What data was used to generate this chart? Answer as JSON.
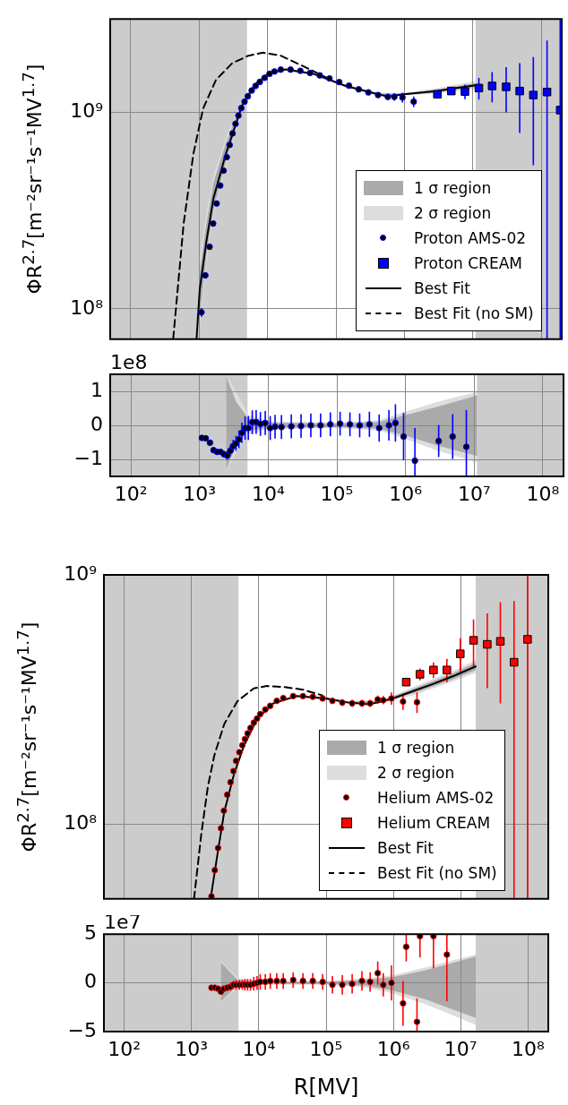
{
  "chart_data": [
    {
      "type": "line",
      "ylabel": "ΦR$^{2.7}$[m⁻²sr⁻¹s⁻¹MV$^{1.7}$]",
      "log": "xy",
      "grid": true,
      "legend": "bottom right",
      "tick_labels": "y",
      "xlim": [
        50,
        200000000
      ],
      "xticks": [
        {
          "value": 100,
          "label": null
        },
        {
          "value": 1000,
          "label": null
        },
        {
          "value": 10000,
          "label": null
        },
        {
          "value": 100000,
          "label": null
        },
        {
          "value": 1000000,
          "label": null
        },
        {
          "value": 10000000,
          "label": null
        },
        {
          "value": 100000000,
          "label": null
        }
      ],
      "ylim": [
        70000000,
        3000000000
      ],
      "yticks": [
        {
          "value": 100000000,
          "label": "10⁸"
        },
        {
          "value": 1000000000,
          "label": "10⁹"
        }
      ],
      "bands": [
        {
          "axis": "x",
          "from": 50,
          "to": 5000,
          "color": "#cccccc"
        },
        {
          "axis": "x",
          "from": 11000000,
          "to": 200000000,
          "color": "#cccccc"
        }
      ],
      "series": [
        {
          "name": "1 σ region",
          "type": "line",
          "color": "#aaaaaa",
          "x": [
            1020,
            1270,
            1620,
            2450,
            4230,
            6530,
            10100,
            18400,
            46600,
            139000,
            413000,
            989000,
            2940000,
            10900000
          ],
          "values": [
            null,
            null,
            null,
            null,
            null,
            null,
            null,
            null,
            null,
            null,
            null,
            null,
            null,
            null
          ],
          "lower": [
            90000000,
            185000000,
            320000000,
            560000000,
            1050000000,
            1380000000,
            1565000000,
            1650000000,
            1565000000,
            1355000000,
            1230000000,
            1230000000,
            1270000000,
            1350000000
          ],
          "upper": [
            155000000,
            270000000,
            440000000,
            700000000,
            1130000000,
            1400000000,
            1590000000,
            1670000000,
            1590000000,
            1380000000,
            1250000000,
            1250000000,
            1310000000,
            1410000000
          ]
        },
        {
          "name": "2 σ region",
          "type": "line",
          "color": "#dddddd",
          "x": [
            1020,
            1270,
            1620,
            2450,
            4230,
            6530,
            10100,
            18400,
            46600,
            139000,
            413000,
            989000,
            2940000,
            10900000
          ],
          "values": [
            null,
            null,
            null,
            null,
            null,
            null,
            null,
            null,
            null,
            null,
            null,
            null,
            null,
            null
          ],
          "lower": [
            80000000,
            170000000,
            300000000,
            530000000,
            1030000000,
            1370000000,
            1555000000,
            1640000000,
            1555000000,
            1345000000,
            1220000000,
            1220000000,
            1250000000,
            1320000000
          ],
          "upper": [
            180000000,
            300000000,
            480000000,
            740000000,
            1150000000,
            1410000000,
            1600000000,
            1680000000,
            1600000000,
            1390000000,
            1260000000,
            1260000000,
            1330000000,
            1450000000
          ]
        },
        {
          "name": "Proton AMS-02",
          "type": "scatter",
          "marker": "circle",
          "color": "#0000ff",
          "x": [
            1080,
            1230,
            1420,
            1600,
            1800,
            2030,
            2270,
            2530,
            2790,
            3080,
            3400,
            3750,
            4130,
            4610,
            5140,
            5860,
            6680,
            7700,
            9060,
            10700,
            12600,
            15600,
            21700,
            30100,
            41800,
            58000,
            80400,
            111500,
            155000,
            215000,
            298000,
            413000,
            573000,
            713000,
            937000,
            1370000
          ],
          "values": [
            96000000,
            148000000,
            207000000,
            272000000,
            344000000,
            425000000,
            506000000,
            593000000,
            684000000,
            783000000,
            877000000,
            966000000,
            1054000000,
            1137000000,
            1211000000,
            1296000000,
            1368000000,
            1433000000,
            1504000000,
            1577000000,
            1620000000,
            1656000000,
            1656000000,
            1633000000,
            1592000000,
            1548000000,
            1493000000,
            1431000000,
            1372000000,
            1314000000,
            1268000000,
            1229000000,
            1203000000,
            1203000000,
            1194000000,
            1137000000
          ],
          "errors": [
            5000000,
            5000000,
            6000000,
            8000000,
            8000000,
            8000000,
            10000000,
            12000000,
            15000000,
            18000000,
            22000000,
            26000000,
            30000000,
            34000000,
            35000000,
            35000000,
            35000000,
            35000000,
            35000000,
            35000000,
            35000000,
            35000000,
            35000000,
            35000000,
            35000000,
            35000000,
            35000000,
            35000000,
            35000000,
            35000000,
            37000000,
            40000000,
            45000000,
            55000000,
            70000000,
            70000000
          ]
        },
        {
          "name": "Proton CREAM",
          "type": "scatter",
          "marker": "square",
          "color": "#0000ff",
          "x": [
            3040000,
            4860000,
            7690000,
            12300000,
            19200000,
            30800000,
            48600000,
            76900000,
            122000000,
            190000000
          ],
          "values": [
            1240000000,
            1288000000,
            1280000000,
            1334000000,
            1367000000,
            1353000000,
            1288000000,
            1229000000,
            1273000000,
            1030000000
          ],
          "errors": [
            null,
            null,
            110000000,
            170000000,
            240000000,
            350000000,
            500000000,
            690000000,
            [
              70000000,
              2330000000
            ],
            [
              70000000,
              3000000000
            ]
          ]
        },
        {
          "name": "Best Fit",
          "type": "line",
          "line_style": "solid",
          "color": "#000000",
          "x": [
            916,
            1020,
            1270,
            1620,
            2450,
            4230,
            6530,
            10100,
            18400,
            46600,
            139000,
            413000,
            573000,
            989000,
            2940000,
            10900000
          ],
          "values": [
            70500000,
            126000000,
            219000000,
            367000000,
            615000000,
            1085000000,
            1390000000,
            1577000000,
            1660000000,
            1577000000,
            1367000000,
            1240000000,
            1207000000,
            1240000000,
            1288000000,
            1377000000
          ]
        },
        {
          "name": "Best Fit (no SM)",
          "type": "line",
          "line_style": "dashed",
          "color": "#000000",
          "x": [
            418,
            427,
            593,
            822,
            1140,
            1760,
            3040,
            5250,
            8590,
            15600,
            37400,
            80400
          ],
          "values": [
            70500000,
            76900000,
            272000000,
            615000000,
            1047000000,
            1468000000,
            1785000000,
            1950000000,
            2020000000,
            1950000000,
            1690000000,
            1480000000
          ]
        }
      ]
    },
    {
      "type": "line",
      "log": "x",
      "grid": true,
      "annotations": [
        "1e8"
      ],
      "xlim": [
        50,
        200000000
      ],
      "xticks": [
        {
          "value": 100,
          "label": "10²"
        },
        {
          "value": 1000,
          "label": "10³"
        },
        {
          "value": 10000,
          "label": "10⁴"
        },
        {
          "value": 100000,
          "label": "10⁵"
        },
        {
          "value": 1000000,
          "label": "10⁶"
        },
        {
          "value": 10000000,
          "label": "10⁷"
        },
        {
          "value": 100000000,
          "label": "10⁸"
        }
      ],
      "ylim": [
        -1.5,
        1.5
      ],
      "yticks": [
        {
          "value": -1,
          "label": "−1"
        },
        0,
        1
      ],
      "bands": [
        {
          "axis": "x",
          "from": 50,
          "to": 5000,
          "color": "#cccccc"
        },
        {
          "axis": "x",
          "from": 11000000,
          "to": 200000000,
          "color": "#cccccc"
        }
      ],
      "series": [
        {
          "type": "line",
          "color": "#aaaaaa",
          "x": [
            2450,
            3400,
            5140,
            10000,
            100000,
            413000,
            1000000,
            3000000,
            11000000
          ],
          "values": [
            null,
            null,
            null,
            null,
            null,
            null,
            null,
            null,
            null
          ],
          "lower": [
            -1.3,
            -0.6,
            -0.15,
            -0.08,
            -0.05,
            -0.1,
            -0.3,
            -0.6,
            -0.9
          ],
          "upper": [
            1.45,
            0.7,
            0.2,
            0.08,
            0.05,
            0.1,
            0.3,
            0.55,
            0.88
          ]
        },
        {
          "type": "line",
          "color": "#dddddd",
          "x": [
            2450,
            3400,
            5140,
            10000,
            100000,
            413000,
            1000000,
            3000000,
            11000000
          ],
          "values": [
            null,
            null,
            null,
            null,
            null,
            null,
            null,
            null,
            null
          ],
          "lower": [
            -1.35,
            -0.8,
            -0.25,
            -0.12,
            -0.08,
            -0.15,
            -0.4,
            -0.75,
            -1.09
          ],
          "upper": [
            1.48,
            1,
            0.3,
            0.12,
            0.08,
            0.15,
            0.4,
            0.7,
            0.98
          ]
        },
        {
          "type": "scatter",
          "marker": "circle",
          "color": "#0000ff",
          "x": [
            1080,
            1230,
            1420,
            1600,
            1800,
            2030,
            2270,
            2530,
            2790,
            3080,
            3400,
            3750,
            4130,
            4610,
            5140,
            5860,
            6680,
            7700,
            9060,
            10700,
            12600,
            15600,
            21700,
            30100,
            41800,
            58000,
            80400,
            111500,
            155000,
            215000,
            298000,
            413000,
            573000,
            713000,
            937000,
            1370000
          ],
          "values": [
            -0.37,
            -0.38,
            -0.51,
            -0.73,
            -0.78,
            -0.78,
            -0.85,
            -0.89,
            -0.75,
            -0.61,
            -0.53,
            -0.41,
            -0.22,
            -0.08,
            -0.08,
            0.09,
            0.1,
            0.04,
            0.07,
            -0.08,
            -0.04,
            -0.05,
            -0.03,
            -0.02,
            0,
            0,
            0.03,
            0.05,
            0.03,
            0,
            0.03,
            -0.08,
            0,
            0.07,
            -0.33,
            -1.04
          ],
          "errors": [
            0.05,
            0.05,
            0.06,
            0.08,
            0.08,
            0.08,
            0.1,
            0.12,
            0.15,
            0.18,
            0.22,
            0.26,
            0.3,
            0.34,
            0.35,
            0.35,
            0.35,
            0.35,
            0.35,
            0.35,
            0.35,
            0.35,
            0.35,
            0.35,
            0.35,
            0.35,
            0.35,
            0.35,
            0.35,
            0.35,
            0.37,
            0.4,
            0.45,
            0.55,
            0.7,
            [
              -1.5,
              -0.08
            ]
          ]
        },
        {
          "type": "scatter",
          "marker": "circle",
          "color": "#0000ff",
          "x": [
            3040000,
            4860000,
            7690000
          ],
          "values": [
            -0.46,
            -0.33,
            -0.63
          ],
          "errors": [
            0.47,
            0.66,
            [
              -1.5,
              0.45
            ]
          ]
        }
      ]
    },
    {
      "type": "line",
      "ylabel": "ΦR$^{2.7}$[m⁻²sr⁻¹s⁻¹MV$^{1.7}$]",
      "log": "xy",
      "grid": true,
      "legend": "bottom right",
      "tick_labels": "y",
      "xlim": [
        50,
        200000000
      ],
      "xticks": [
        {
          "value": 100,
          "label": null
        },
        {
          "value": 1000,
          "label": null
        },
        {
          "value": 10000,
          "label": null
        },
        {
          "value": 100000,
          "label": null
        },
        {
          "value": 1000000,
          "label": null
        },
        {
          "value": 10000000,
          "label": null
        },
        {
          "value": 100000000,
          "label": null
        }
      ],
      "ylim": [
        50000000,
        1000000000
      ],
      "yticks": [
        {
          "value": 100000000,
          "label": "10⁸"
        },
        {
          "value": 1000000000,
          "label": "10⁹"
        }
      ],
      "bands": [
        {
          "axis": "x",
          "from": 50,
          "to": 5000,
          "color": "#cccccc"
        },
        {
          "axis": "x",
          "from": 16700000,
          "to": 200000000,
          "color": "#cccccc"
        }
      ],
      "series": [
        {
          "name": "1 σ region",
          "type": "line",
          "color": "#aaaaaa",
          "x": [
            2450,
            3070,
            4300,
            6010,
            9420,
            16500,
            36300,
            99300,
            218000,
            668000,
            2050000,
            7880000,
            16700000
          ],
          "values": [
            null,
            null,
            null,
            null,
            null,
            null,
            null,
            null,
            null,
            null,
            null,
            null,
            null
          ],
          "lower": [
            72000000,
            107000000,
            155000000,
            203000000,
            262000000,
            303000000,
            324000000,
            317000000,
            305000000,
            308000000,
            336000000,
            382000000,
            415000000
          ],
          "upper": [
            82000000,
            117000000,
            163000000,
            209000000,
            266000000,
            307000000,
            328000000,
            321000000,
            309000000,
            312000000,
            350000000,
            404000000,
            443000000
          ]
        },
        {
          "name": "2 σ region",
          "type": "line",
          "color": "#dddddd",
          "x": [
            2450,
            3070,
            4300,
            6010,
            9420,
            16500,
            36300,
            99300,
            218000,
            668000,
            2050000,
            7880000,
            16700000
          ],
          "values": [
            null,
            null,
            null,
            null,
            null,
            null,
            null,
            null,
            null,
            null,
            null,
            null,
            null
          ],
          "lower": [
            69000000,
            104000000,
            152000000,
            201000000,
            260000000,
            301000000,
            322000000,
            315000000,
            303000000,
            306000000,
            330000000,
            374000000,
            405000000
          ],
          "upper": [
            85000000,
            120000000,
            166000000,
            211000000,
            268000000,
            309000000,
            330000000,
            323000000,
            311000000,
            314000000,
            356000000,
            412000000,
            455000000
          ]
        },
        {
          "name": "Helium AMS-02",
          "type": "scatter",
          "marker": "circle",
          "color": "#ff0000",
          "x": [
            1980,
            2220,
            2480,
            2740,
            3030,
            3400,
            3800,
            4200,
            4600,
            5140,
            5690,
            6220,
            6810,
            7530,
            8420,
            9420,
            10500,
            12500,
            14800,
            18500,
            23100,
            32400,
            45300,
            63400,
            88800,
            124000,
            174000,
            244000,
            341000,
            451000,
            585000,
            707000,
            936000,
            1390000,
            2240000
          ],
          "values": [
            51200000,
            65200000,
            80000000,
            96000000,
            113000000,
            131000000,
            147000000,
            163000000,
            179000000,
            194000000,
            207000000,
            219000000,
            231000000,
            243000000,
            255000000,
            265000000,
            276000000,
            288000000,
            298000000,
            312000000,
            320000000,
            326000000,
            326000000,
            324000000,
            319000000,
            312000000,
            307000000,
            305000000,
            305000000,
            305000000,
            316000000,
            314000000,
            319000000,
            310000000,
            308000000
          ],
          "errors": [
            null,
            2000000,
            2000000,
            3000000,
            3000000,
            3000000,
            4000000,
            4000000,
            5000000,
            5000000,
            5000000,
            6000000,
            6000000,
            6000000,
            7000000,
            7000000,
            8000000,
            8000000,
            8000000,
            8000000,
            8000000,
            8000000,
            8000000,
            8000000,
            8000000,
            9000000,
            10000000,
            10000000,
            10000000,
            10000000,
            12000000,
            12000000,
            18000000,
            23000000,
            29000000
          ]
        },
        {
          "name": "Helium CREAM",
          "type": "scatter",
          "marker": "square",
          "color": "#ff0000",
          "x": [
            1550000,
            2480000,
            3940000,
            6230000,
            9860000,
            15500000,
            24800000,
            38800000,
            62000000,
            98400000
          ],
          "values": [
            371000000,
            399000000,
            415000000,
            415000000,
            482000000,
            546000000,
            526000000,
            541000000,
            446000000,
            551000000
          ],
          "errors": [
            null,
            22000000,
            30000000,
            45000000,
            75000000,
            117000000,
            175000000,
            236000000,
            [
              50000000,
              785000000
            ],
            [
              50000000,
              1000000000
            ]
          ]
        },
        {
          "name": "Best Fit",
          "type": "line",
          "line_style": "solid",
          "color": "#000000",
          "x": [
            1920,
            2450,
            3070,
            4300,
            6010,
            9420,
            16500,
            36300,
            99300,
            218000,
            427000,
            668000,
            1050000,
            2050000,
            4020000,
            7880000,
            16700000
          ],
          "values": [
            50000000,
            76600000,
            112000000,
            159000000,
            206000000,
            264000000,
            305000000,
            326000000,
            319000000,
            307000000,
            302000000,
            310000000,
            321000000,
            343000000,
            366000000,
            393000000,
            429000000
          ]
        },
        {
          "name": "Best Fit (no SM)",
          "type": "line",
          "line_style": "dashed",
          "color": "#000000",
          "x": [
            1090,
            1400,
            1750,
            2190,
            3070,
            4810,
            8420,
            13200,
            23100,
            45300,
            88700
          ],
          "values": [
            50000000,
            91200000,
            141000000,
            189000000,
            252000000,
            311000000,
            350000000,
            358000000,
            355000000,
            346000000,
            328000000
          ]
        }
      ]
    },
    {
      "type": "line",
      "log": "x",
      "grid": true,
      "annotations": [
        "1e7"
      ],
      "xlabel": "R[MV]",
      "xlim": [
        50,
        200000000
      ],
      "xticks": [
        {
          "value": 100,
          "label": "10²"
        },
        {
          "value": 1000,
          "label": "10³"
        },
        {
          "value": 10000,
          "label": "10⁴"
        },
        {
          "value": 100000,
          "label": "10⁵"
        },
        {
          "value": 1000000,
          "label": "10⁶"
        },
        {
          "value": 10000000,
          "label": "10⁷"
        },
        {
          "value": 100000000,
          "label": "10⁸"
        }
      ],
      "ylim": [
        -5,
        5
      ],
      "yticks": [
        {
          "value": -5,
          "label": "−5"
        },
        0,
        5
      ],
      "bands": [
        {
          "axis": "x",
          "from": 50,
          "to": 5000,
          "color": "#cccccc"
        },
        {
          "axis": "x",
          "from": 16700000,
          "to": 200000000,
          "color": "#cccccc"
        }
      ],
      "series": [
        {
          "type": "line",
          "color": "#aaaaaa",
          "x": [
            2740,
            4820,
            10000,
            100000,
            400000,
            1000000,
            3000000,
            16700000
          ],
          "values": [
            null,
            null,
            null,
            null,
            null,
            null,
            null,
            null
          ],
          "lower": [
            -1.9,
            -0.3,
            -0.1,
            -0.1,
            -0.3,
            -0.8,
            -1.7,
            -3.6
          ],
          "upper": [
            2.1,
            0.3,
            0.1,
            0.1,
            0.3,
            0.6,
            1.3,
            2.7
          ]
        },
        {
          "type": "line",
          "color": "#dddddd",
          "x": [
            2740,
            4820,
            10000,
            100000,
            400000,
            1000000,
            3000000,
            16700000
          ],
          "values": [
            null,
            null,
            null,
            null,
            null,
            null,
            null,
            null
          ],
          "lower": [
            -2,
            -0.5,
            -0.2,
            -0.2,
            -0.5,
            -1.1,
            -2.2,
            -4.3
          ],
          "upper": [
            2.2,
            0.5,
            0.2,
            0.2,
            0.5,
            0.8,
            1.6,
            2.9
          ]
        },
        {
          "type": "scatter",
          "marker": "circle",
          "color": "#ff0000",
          "x": [
            1980,
            2220,
            2480,
            2740,
            3030,
            3400,
            3800,
            4200,
            4600,
            5140,
            5690,
            6220,
            6810,
            7530,
            8420,
            9420,
            10500,
            12500,
            14800,
            18500,
            23100,
            32400,
            45300,
            63400,
            88800,
            124000,
            174000,
            244000,
            341000,
            451000,
            585000,
            707000,
            936000,
            1390000,
            2240000
          ],
          "values": [
            -0.5,
            -0.5,
            -0.6,
            -0.9,
            -0.6,
            -0.5,
            -0.4,
            -0.2,
            -0.2,
            -0.2,
            -0.2,
            -0.2,
            -0.2,
            -0.2,
            -0.1,
            0,
            0.1,
            0.1,
            0.2,
            0.2,
            0.2,
            0.3,
            0.2,
            0.2,
            0.1,
            -0.2,
            -0.2,
            -0.1,
            0.2,
            0.1,
            1,
            -0.2,
            0,
            -2.1,
            -4
          ],
          "errors": [
            0.2,
            0.2,
            0.2,
            0.3,
            0.3,
            0.3,
            0.4,
            0.4,
            0.5,
            0.5,
            0.5,
            0.6,
            0.6,
            0.6,
            0.7,
            0.7,
            0.8,
            0.8,
            0.8,
            0.8,
            0.8,
            0.8,
            0.8,
            0.8,
            0.8,
            0.9,
            1,
            1,
            1,
            1,
            1.2,
            1.2,
            1.8,
            2.3,
            [
              -5,
              -1.6
            ]
          ]
        },
        {
          "type": "scatter",
          "marker": "circle",
          "color": "#ff0000",
          "x": [
            1550000,
            2480000,
            3940000,
            6230000
          ],
          "values": [
            3.7,
            4.8,
            4.8,
            2.9
          ],
          "errors": [
            [
              2.2,
              5
            ],
            [
              2.6,
              5
            ],
            [
              1.5,
              5
            ],
            [
              -1.9,
              5
            ]
          ]
        }
      ]
    }
  ]
}
